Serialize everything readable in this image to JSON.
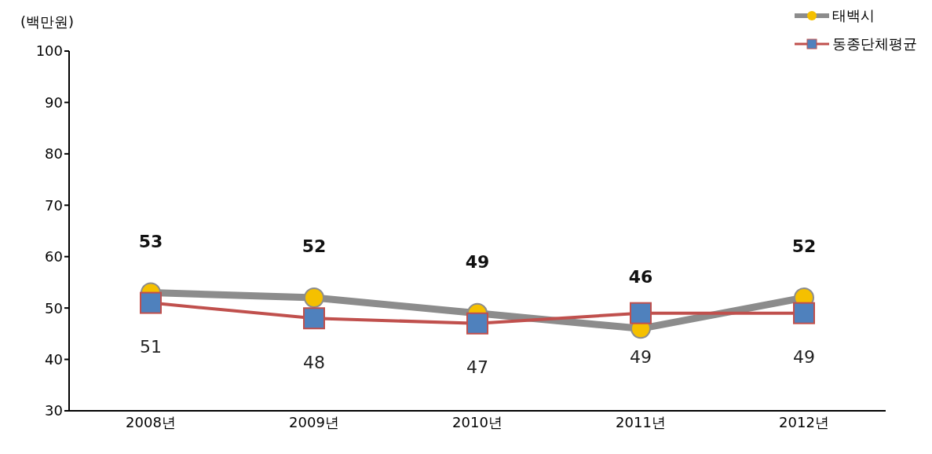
{
  "chart_data": {
    "type": "line",
    "ylabel": "(백만원)",
    "categories": [
      "2008년",
      "2009년",
      "2010년",
      "2011년",
      "2012년"
    ],
    "series": [
      {
        "name": "태백시",
        "color": "#8c8c8c",
        "marker": "circle",
        "colors": [
          "#f5c000",
          "#f5c000",
          "#f5c000",
          "#f5c000",
          "#f5c000"
        ],
        "values": [
          53,
          52,
          49,
          46,
          52
        ]
      },
      {
        "name": "동종단체평균",
        "color": "#c0504d",
        "marker": "square",
        "colors": [
          "#4f81bd",
          "#4f81bd",
          "#4f81bd",
          "#4f81bd",
          "#4f81bd"
        ],
        "values": [
          51,
          48,
          47,
          49,
          49
        ]
      }
    ],
    "ylim": [
      30,
      100
    ],
    "yticks": [
      30,
      40,
      50,
      60,
      70,
      80,
      90,
      100
    ],
    "grid": false,
    "legend": "top right",
    "data_labels": true
  }
}
